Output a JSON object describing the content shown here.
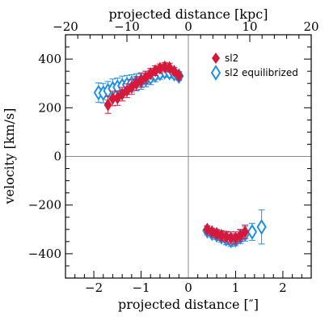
{
  "chart_data": {
    "type": "scatter",
    "xlabel": "projected distance [″]",
    "x2label": "projected distance [kpc]",
    "ylabel": "velocity [km/s]",
    "xlim": [
      -2.6,
      2.6
    ],
    "ylim": [
      -500,
      500
    ],
    "x2lim": [
      -20,
      20
    ],
    "xticks": [
      -2,
      -1,
      0,
      1,
      2
    ],
    "xtick_labels": [
      "−2",
      "−1",
      "0",
      "1",
      "2"
    ],
    "x2ticks": [
      -20,
      -10,
      0,
      10,
      20
    ],
    "x2tick_labels": [
      "−20",
      "−10",
      "0",
      "10",
      "20"
    ],
    "yticks": [
      -400,
      -200,
      0,
      200,
      400
    ],
    "ytick_labels": [
      "−400",
      "−200",
      "0",
      "200",
      "400"
    ],
    "grid": false,
    "reference_lines": {
      "x": 0,
      "y": 0
    },
    "legend_position": "top-right",
    "series": [
      {
        "name": "sl2",
        "color": "#d6193b",
        "marker": "filled-diamond",
        "points": [
          {
            "x": -1.7,
            "y": 212,
            "err": 35
          },
          {
            "x": -1.6,
            "y": 238,
            "err": 30
          },
          {
            "x": -1.5,
            "y": 240,
            "err": 30
          },
          {
            "x": -1.4,
            "y": 256,
            "err": 28
          },
          {
            "x": -1.3,
            "y": 270,
            "err": 28
          },
          {
            "x": -1.2,
            "y": 285,
            "err": 30
          },
          {
            "x": -1.1,
            "y": 300,
            "err": 28
          },
          {
            "x": -1.0,
            "y": 312,
            "err": 28
          },
          {
            "x": -0.9,
            "y": 325,
            "err": 25
          },
          {
            "x": -0.8,
            "y": 340,
            "err": 22
          },
          {
            "x": -0.7,
            "y": 352,
            "err": 20
          },
          {
            "x": -0.6,
            "y": 362,
            "err": 18
          },
          {
            "x": -0.5,
            "y": 368,
            "err": 18
          },
          {
            "x": -0.4,
            "y": 365,
            "err": 18
          },
          {
            "x": -0.3,
            "y": 350,
            "err": 15
          },
          {
            "x": -0.2,
            "y": 332,
            "err": 15
          },
          {
            "x": 0.4,
            "y": -300,
            "err": 15
          },
          {
            "x": 0.5,
            "y": -310,
            "err": 15
          },
          {
            "x": 0.6,
            "y": -318,
            "err": 18
          },
          {
            "x": 0.7,
            "y": -325,
            "err": 20
          },
          {
            "x": 0.8,
            "y": -330,
            "err": 22
          },
          {
            "x": 0.9,
            "y": -335,
            "err": 25
          },
          {
            "x": 1.0,
            "y": -335,
            "err": 25
          },
          {
            "x": 1.1,
            "y": -325,
            "err": 25
          },
          {
            "x": 1.2,
            "y": -310,
            "err": 28
          }
        ]
      },
      {
        "name": "sl2 equilibrized",
        "color": "#1e8fe8",
        "marker": "open-diamond",
        "points": [
          {
            "x": -1.9,
            "y": 262,
            "err": 40
          },
          {
            "x": -1.8,
            "y": 260,
            "err": 40
          },
          {
            "x": -1.7,
            "y": 270,
            "err": 38
          },
          {
            "x": -1.6,
            "y": 278,
            "err": 40
          },
          {
            "x": -1.5,
            "y": 284,
            "err": 38
          },
          {
            "x": -1.4,
            "y": 290,
            "err": 40
          },
          {
            "x": -1.3,
            "y": 295,
            "err": 38
          },
          {
            "x": -1.2,
            "y": 300,
            "err": 36
          },
          {
            "x": -1.1,
            "y": 305,
            "err": 35
          },
          {
            "x": -1.0,
            "y": 310,
            "err": 34
          },
          {
            "x": -0.9,
            "y": 318,
            "err": 32
          },
          {
            "x": -0.8,
            "y": 325,
            "err": 30
          },
          {
            "x": -0.7,
            "y": 335,
            "err": 28
          },
          {
            "x": -0.6,
            "y": 342,
            "err": 25
          },
          {
            "x": -0.5,
            "y": 348,
            "err": 22
          },
          {
            "x": -0.4,
            "y": 345,
            "err": 20
          },
          {
            "x": -0.3,
            "y": 340,
            "err": 18
          },
          {
            "x": -0.2,
            "y": 330,
            "err": 18
          },
          {
            "x": 0.4,
            "y": -305,
            "err": 18
          },
          {
            "x": 0.5,
            "y": -315,
            "err": 18
          },
          {
            "x": 0.6,
            "y": -322,
            "err": 20
          },
          {
            "x": 0.7,
            "y": -330,
            "err": 22
          },
          {
            "x": 0.8,
            "y": -338,
            "err": 25
          },
          {
            "x": 0.9,
            "y": -345,
            "err": 25
          },
          {
            "x": 1.0,
            "y": -342,
            "err": 25
          },
          {
            "x": 1.1,
            "y": -330,
            "err": 28
          },
          {
            "x": 1.2,
            "y": -318,
            "err": 30
          },
          {
            "x": 1.35,
            "y": -310,
            "err": 35
          },
          {
            "x": 1.55,
            "y": -290,
            "err": 70
          }
        ]
      }
    ]
  }
}
